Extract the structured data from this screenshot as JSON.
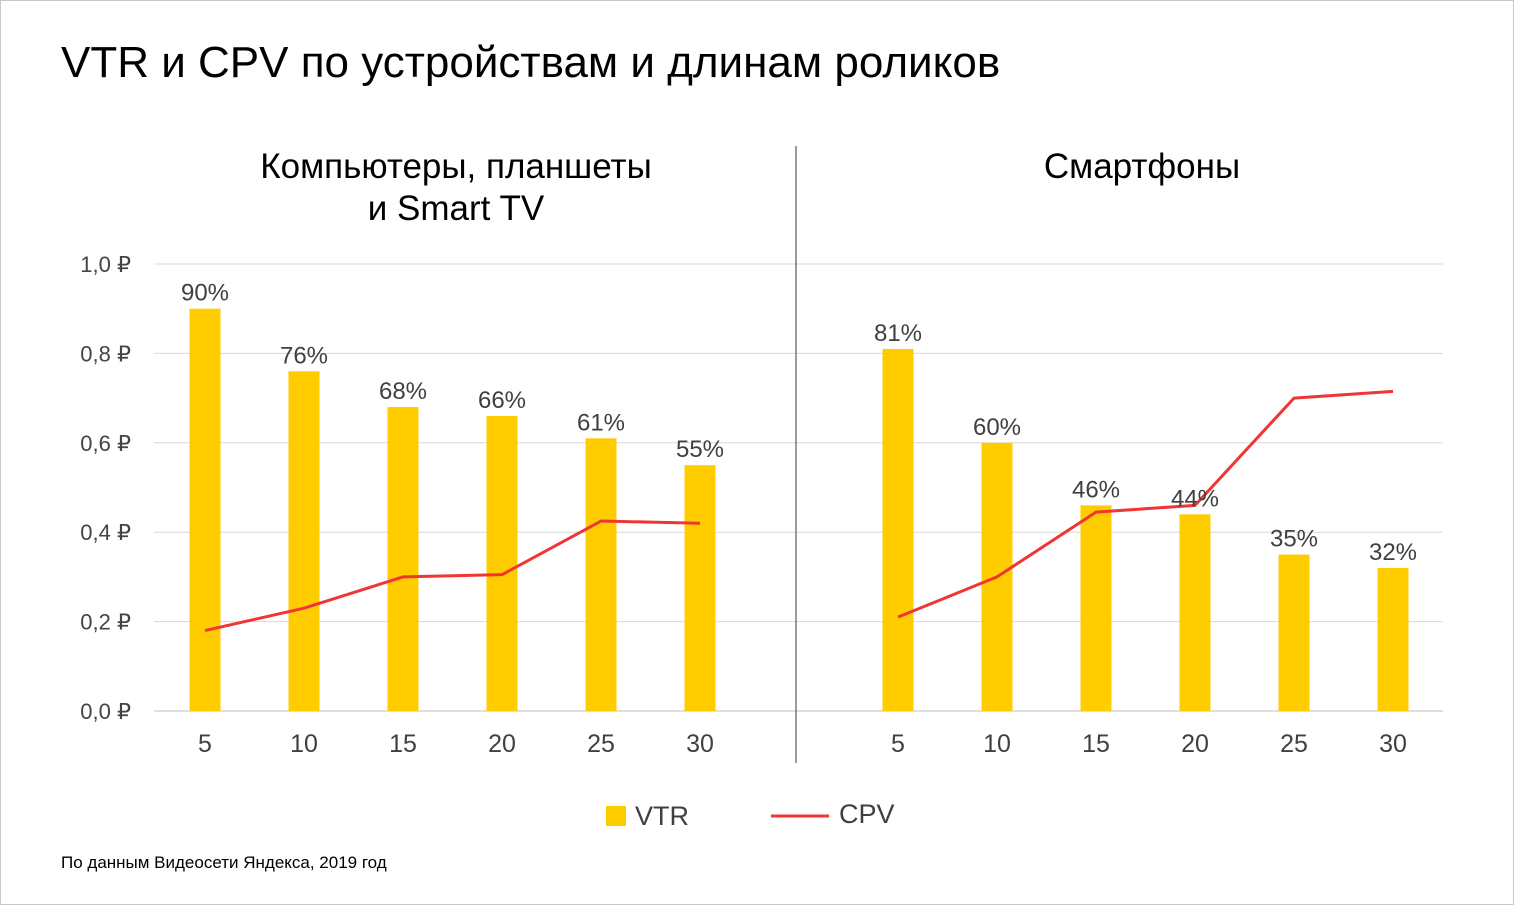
{
  "title": "VTR и CPV по устройствам и длинам роликов",
  "source": "По данным Видеосети Яндекса, 2019 год",
  "colors": {
    "vtr_bar": "#ffcc00",
    "cpv_line": "#f03535",
    "grid": "#d9d9d9",
    "divider": "#595959"
  },
  "y_axis": {
    "ticks": [
      "0,0 ₽",
      "0,2 ₽",
      "0,4 ₽",
      "0,6 ₽",
      "0,8 ₽",
      "1,0 ₽"
    ],
    "range": [
      0,
      1.0
    ],
    "grid": true
  },
  "legend": {
    "position": "bottom",
    "items": [
      {
        "label": "VTR",
        "kind": "bar"
      },
      {
        "label": "CPV",
        "kind": "line"
      }
    ]
  },
  "chart_data": [
    {
      "type": "bar",
      "title": "Компьютеры, планшеты\nи Smart TV",
      "categories": [
        "5",
        "10",
        "15",
        "20",
        "25",
        "30"
      ],
      "series": [
        {
          "name": "VTR",
          "type": "bar",
          "values": [
            0.9,
            0.76,
            0.68,
            0.66,
            0.61,
            0.55
          ],
          "labels": [
            "90%",
            "76%",
            "68%",
            "66%",
            "61%",
            "55%"
          ]
        },
        {
          "name": "CPV",
          "type": "line",
          "values": [
            0.18,
            0.23,
            0.3,
            0.305,
            0.425,
            0.42
          ]
        }
      ],
      "ylim": [
        0,
        1.0
      ]
    },
    {
      "type": "bar",
      "title": "Смартфоны",
      "categories": [
        "5",
        "10",
        "15",
        "20",
        "25",
        "30"
      ],
      "series": [
        {
          "name": "VTR",
          "type": "bar",
          "values": [
            0.81,
            0.6,
            0.46,
            0.44,
            0.35,
            0.32
          ],
          "labels": [
            "81%",
            "60%",
            "46%",
            "44%",
            "35%",
            "32%"
          ]
        },
        {
          "name": "CPV",
          "type": "line",
          "values": [
            0.21,
            0.3,
            0.445,
            0.46,
            0.7,
            0.715
          ]
        }
      ],
      "ylim": [
        0,
        1.0
      ]
    }
  ]
}
